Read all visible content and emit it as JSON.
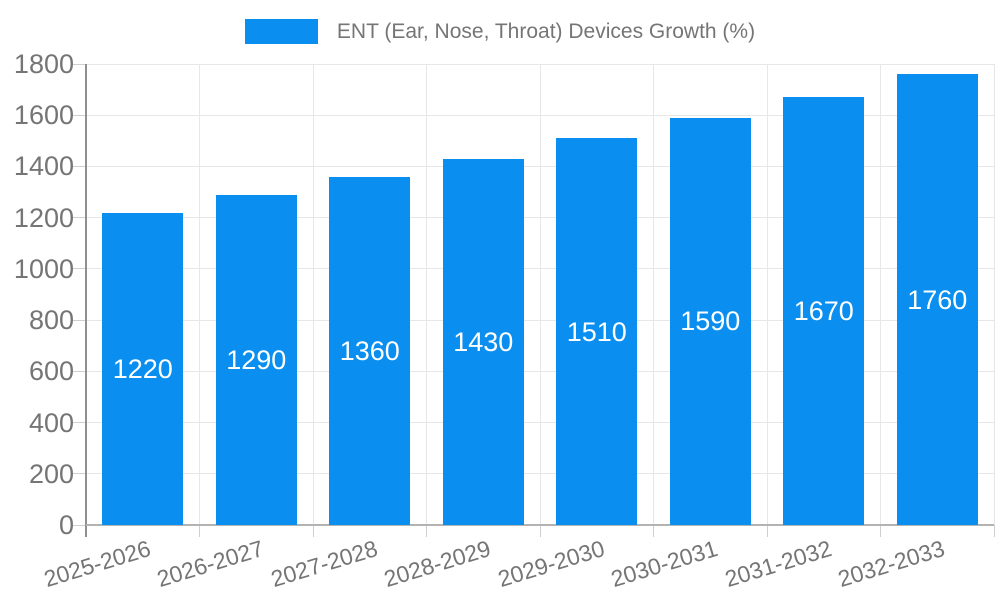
{
  "chart_data": {
    "type": "bar",
    "title": "ENT (Ear, Nose, Throat) Devices Growth (%)",
    "categories": [
      "2025-2026",
      "2026-2027",
      "2027-2028",
      "2028-2029",
      "2029-2030",
      "2030-2031",
      "2031-2032",
      "2032-2033"
    ],
    "values": [
      1220,
      1290,
      1360,
      1430,
      1510,
      1590,
      1670,
      1760
    ],
    "xlabel": "",
    "ylabel": "",
    "ylim": [
      0,
      1800
    ],
    "ytick_step": 200,
    "ytick_labels": [
      "0",
      "200",
      "400",
      "600",
      "800",
      "1000",
      "1200",
      "1400",
      "1600",
      "1800"
    ],
    "grid": true,
    "legend_position": "top-center",
    "value_labels": "inside-center",
    "bar_color": "#0a8ff0",
    "value_label_color": "#ffffff",
    "axis_text_color": "#757575"
  }
}
